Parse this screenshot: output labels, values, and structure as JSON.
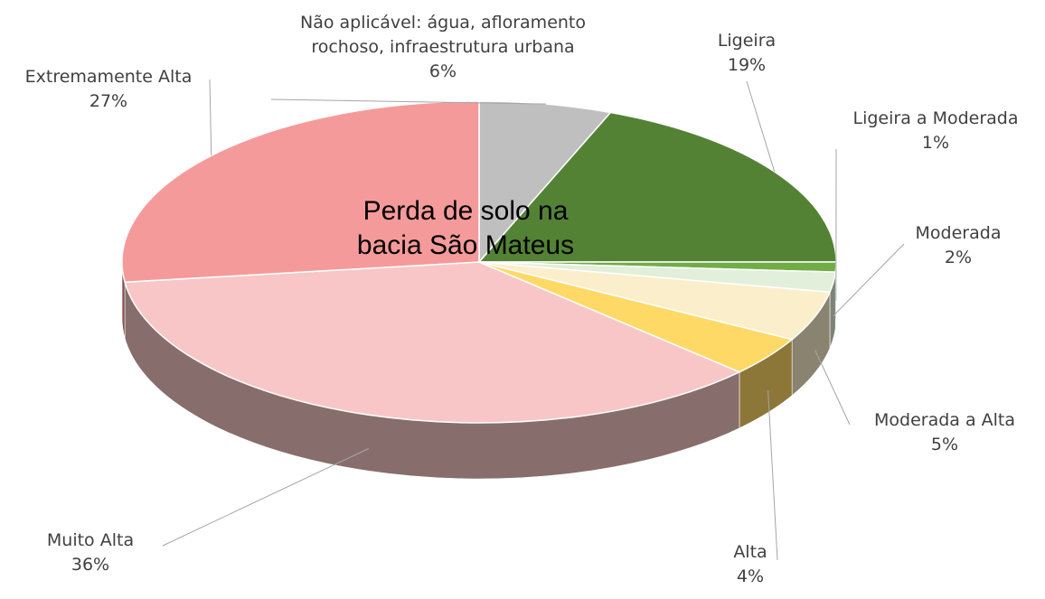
{
  "chart_data": {
    "type": "pie",
    "title": "Perda de solo na bacia São Mateus",
    "categories": [
      "Não aplicável: água, afloramento rochoso, infraestrutura urbana",
      "Ligeira",
      "Ligeira a Moderada",
      "Moderada",
      "Moderada a Alta",
      "Alta",
      "Muito Alta",
      "Extremamente Alta"
    ],
    "values": [
      6,
      19,
      1,
      2,
      5,
      4,
      36,
      27
    ],
    "value_labels": [
      "6%",
      "19%",
      "1%",
      "2%",
      "5%",
      "4%",
      "36%",
      "27%"
    ],
    "colors": [
      "#bfbfbf",
      "#548235",
      "#70ad47",
      "#e2efda",
      "#fbeecb",
      "#ffd966",
      "#f8c6c6",
      "#f59a9a"
    ]
  }
}
